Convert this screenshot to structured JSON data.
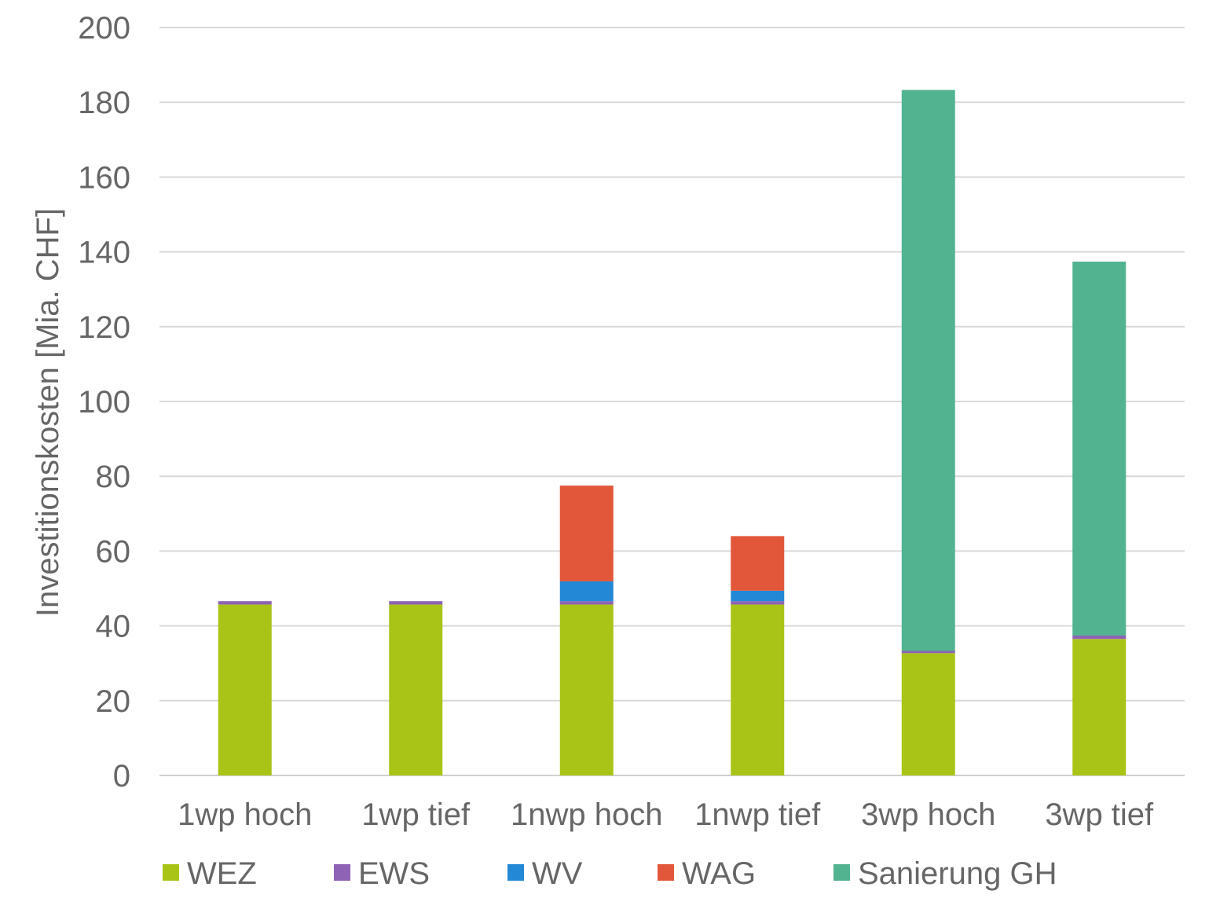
{
  "chart_data": {
    "type": "bar",
    "stacked": true,
    "title": "",
    "xlabel": "",
    "ylabel": "Investitionskosten [Mia. CHF]",
    "ylim": [
      0,
      200
    ],
    "yticks": [
      0,
      20,
      40,
      60,
      80,
      100,
      120,
      140,
      160,
      180,
      200
    ],
    "grid": true,
    "legend_position": "bottom",
    "categories": [
      "1wp hoch",
      "1wp tief",
      "1nwp hoch",
      "1nwp tief",
      "3wp hoch",
      "3wp tief"
    ],
    "series": [
      {
        "name": "WEZ",
        "color": "#A9C416",
        "values": [
          45.7,
          45.7,
          45.7,
          45.7,
          32.7,
          36.5
        ]
      },
      {
        "name": "EWS",
        "color": "#8E62B4",
        "values": [
          0.9,
          0.9,
          0.9,
          0.9,
          0.6,
          0.9
        ]
      },
      {
        "name": "WV",
        "color": "#2389D6",
        "values": [
          0,
          0,
          5.3,
          2.8,
          0,
          0
        ]
      },
      {
        "name": "WAG",
        "color": "#E2573A",
        "values": [
          0,
          0,
          25.6,
          14.6,
          0,
          0
        ]
      },
      {
        "name": "Sanierung GH",
        "color": "#52B390",
        "values": [
          0,
          0,
          0,
          0,
          150.0,
          100.0
        ]
      }
    ]
  }
}
